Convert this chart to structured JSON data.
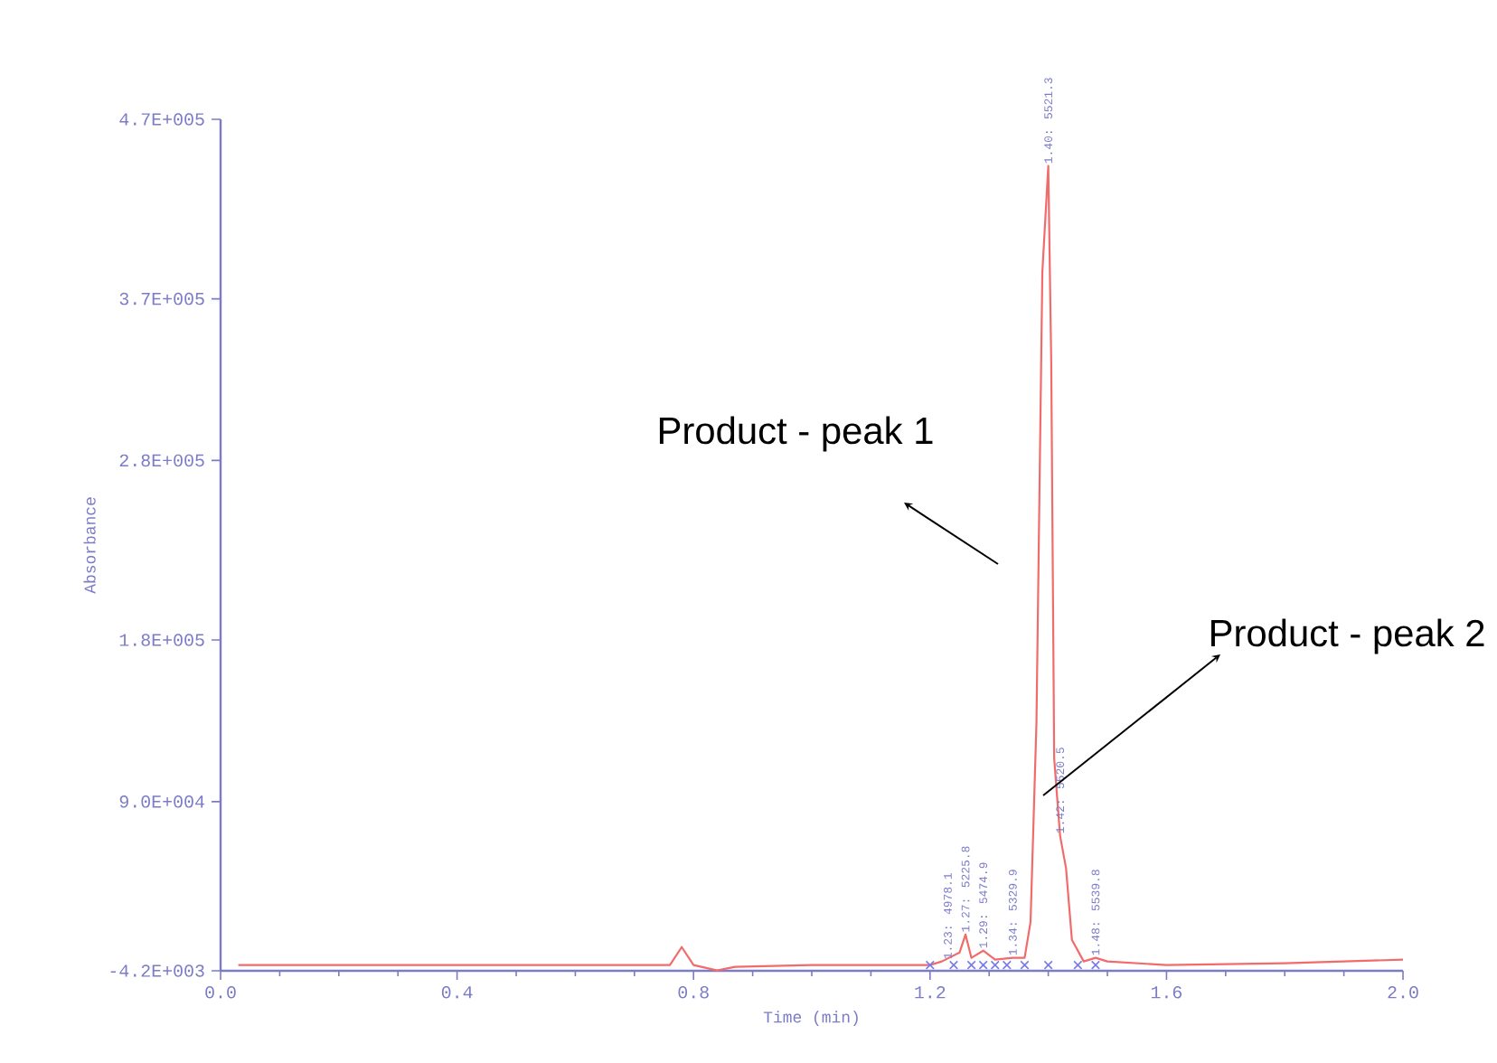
{
  "chart_data": {
    "type": "line",
    "xlabel": "Time (min)",
    "ylabel": "Absorbance",
    "xlim": [
      0,
      2.0
    ],
    "ylim": [
      -4200,
      470000
    ],
    "xticks": [
      {
        "value": 0,
        "label": "0.0"
      },
      {
        "value": 0.4,
        "label": "0.4"
      },
      {
        "value": 0.8,
        "label": "0.8"
      },
      {
        "value": 1.2,
        "label": "1.2"
      },
      {
        "value": 1.6,
        "label": "1.6"
      },
      {
        "value": 2.0,
        "label": "2.0"
      }
    ],
    "yticks": [
      {
        "value": -4200,
        "label": "-4.2E+003"
      },
      {
        "value": 90000,
        "label": "9.0E+004"
      },
      {
        "value": 180000,
        "label": "1.8E+005"
      },
      {
        "value": 280000,
        "label": "2.8E+005"
      },
      {
        "value": 370000,
        "label": "3.7E+005"
      },
      {
        "value": 470000,
        "label": "4.7E+005"
      }
    ],
    "series": [
      {
        "color": "#f26b6b",
        "x": [
          0.03,
          0.76,
          0.78,
          0.8,
          0.84,
          0.87,
          1.0,
          1.2,
          1.22,
          1.25,
          1.26,
          1.27,
          1.29,
          1.31,
          1.34,
          1.36,
          1.37,
          1.38,
          1.39,
          1.4,
          1.405,
          1.41,
          1.42,
          1.43,
          1.44,
          1.46,
          1.48,
          1.5,
          1.6,
          1.8,
          2.0
        ],
        "values": [
          -1000,
          -1000,
          9000,
          -1000,
          -4000,
          -2000,
          -1000,
          -1000,
          1000,
          6000,
          16000,
          3000,
          7000,
          2000,
          3000,
          3000,
          23000,
          134000,
          385000,
          444000,
          335000,
          114000,
          71000,
          53000,
          13000,
          1000,
          3000,
          1000,
          -1000,
          0,
          2000
        ]
      },
      {
        "type": "scatter",
        "color": "#7a7ae6",
        "marker": "cross",
        "x": [
          1.2,
          1.24,
          1.27,
          1.29,
          1.31,
          1.33,
          1.36,
          1.4,
          1.45,
          1.48
        ],
        "values": [
          -1000,
          -1000,
          -1000,
          -1000,
          -1000,
          -1000,
          -1000,
          -1000,
          -1000,
          -1000
        ]
      }
    ],
    "annotations": [
      {
        "text": "1.23: 4978.1",
        "x": 1.23,
        "y": 1000
      },
      {
        "text": "1.27: 5225.8",
        "x": 1.26,
        "y": 16000
      },
      {
        "text": "1.29: 5474.9",
        "x": 1.29,
        "y": 7000
      },
      {
        "text": "1.34: 5329.9",
        "x": 1.34,
        "y": 3000
      },
      {
        "text": "1.40: 5521.3",
        "x": 1.4,
        "y": 444000
      },
      {
        "text": "1.42: 5520.5",
        "x": 1.42,
        "y": 71000
      },
      {
        "text": "1.48: 5539.8",
        "x": 1.48,
        "y": 3000
      },
      "Product - peak 1",
      "Product - peak 2"
    ]
  }
}
